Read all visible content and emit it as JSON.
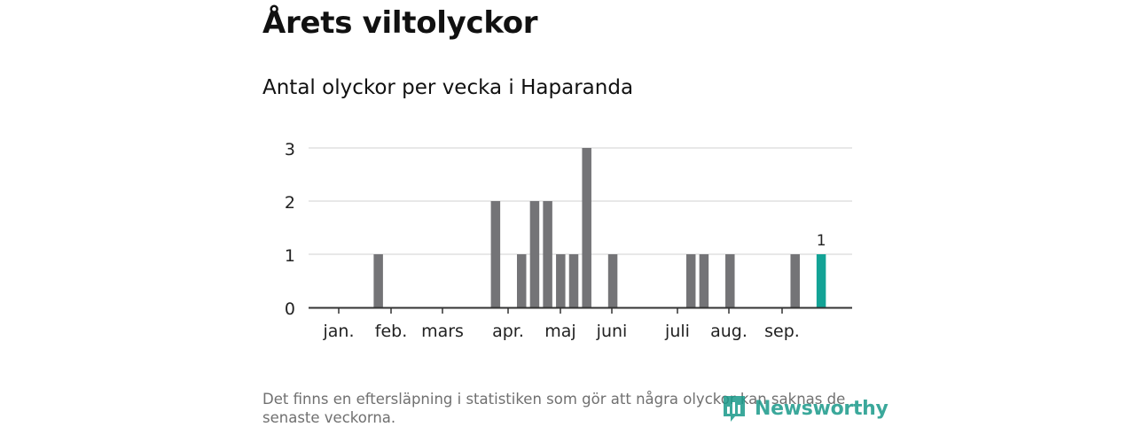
{
  "header": {
    "title": "Årets viltolyckor"
  },
  "chart": {
    "subtitle": "Antal olyckor per vecka i Haparanda"
  },
  "chart_data": {
    "type": "bar",
    "title": "Antal olyckor per vecka i Haparanda",
    "xlabel": "",
    "ylabel": "",
    "ylim": [
      0,
      3
    ],
    "yticks": [
      0,
      1,
      2,
      3
    ],
    "grid": true,
    "x_tick_labels": [
      "jan.",
      "feb.",
      "mars",
      "apr.",
      "maj",
      "juni",
      "juli",
      "aug.",
      "sep."
    ],
    "weeks": [
      1,
      2,
      3,
      4,
      5,
      6,
      7,
      8,
      9,
      10,
      11,
      12,
      13,
      14,
      15,
      16,
      17,
      18,
      19,
      20,
      21,
      22,
      23,
      24,
      25,
      26,
      27,
      28,
      29,
      30,
      31,
      32,
      33,
      34,
      35,
      36,
      37,
      38,
      39,
      40
    ],
    "values": [
      0,
      0,
      0,
      0,
      0,
      1,
      0,
      0,
      0,
      0,
      0,
      0,
      0,
      0,
      2,
      0,
      1,
      2,
      2,
      1,
      1,
      3,
      0,
      1,
      0,
      0,
      0,
      0,
      0,
      1,
      1,
      0,
      1,
      0,
      0,
      0,
      0,
      1,
      0,
      1
    ],
    "highlight_index": 39,
    "annotation": "1",
    "colors": {
      "bar": "#747477",
      "highlight": "#13a396",
      "grid": "#d9d9d9",
      "axis": "#333333"
    }
  },
  "footer": {
    "note": "Det finns en eftersläpning i statistiken som gör att några olyckor kan saknas de senaste veckorna.",
    "logo_text": "Newsworthy",
    "logo_icon": "newsworthy-logo-icon"
  }
}
